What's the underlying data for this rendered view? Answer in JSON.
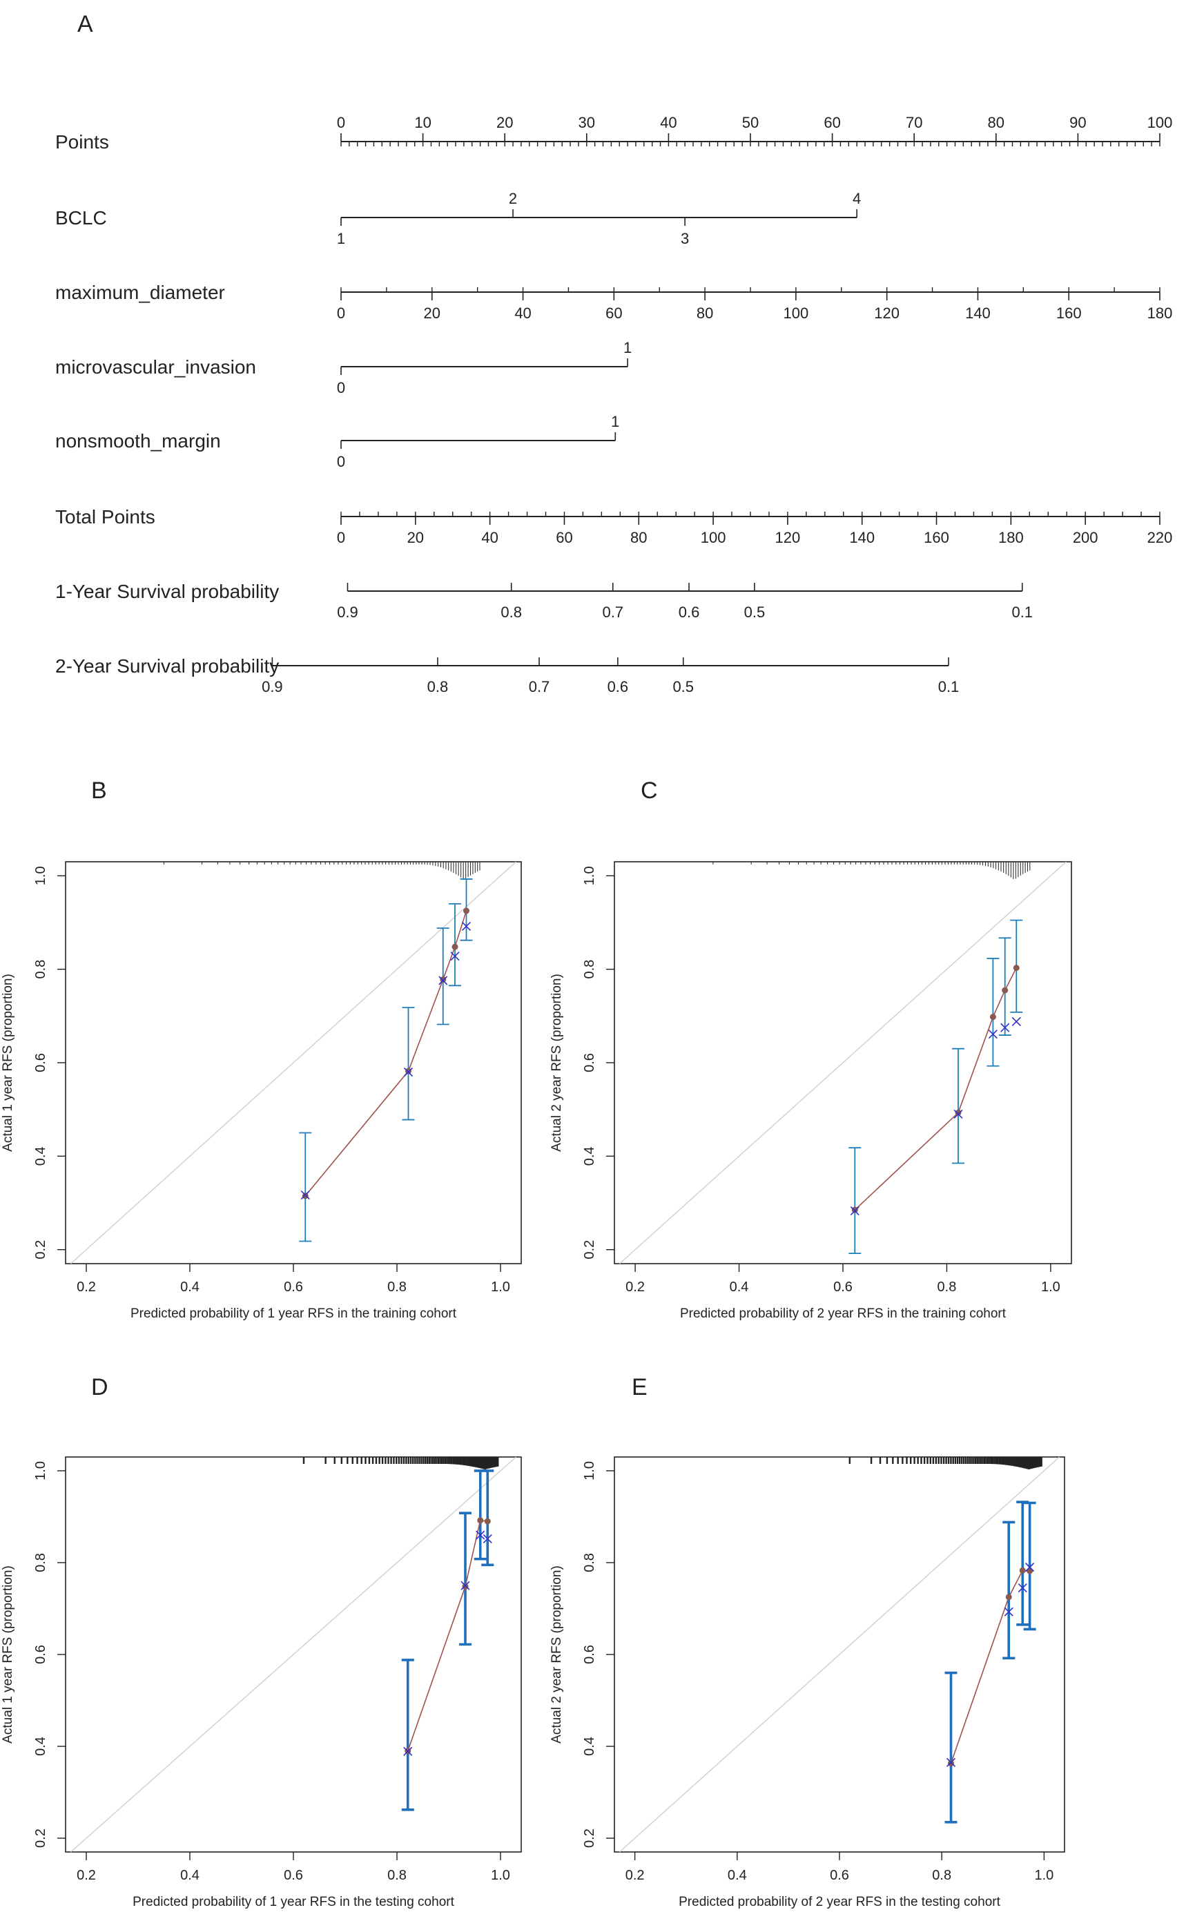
{
  "panel_labels": {
    "A": "A",
    "B": "B",
    "C": "C",
    "D": "D",
    "E": "E"
  },
  "chart_data": [
    {
      "panel": "A",
      "type": "nomogram",
      "rows": [
        {
          "label": "Points",
          "kind": "scale",
          "domain": [
            0,
            100
          ],
          "span": [
            0,
            100
          ],
          "ticks": [
            "0",
            "10",
            "20",
            "30",
            "40",
            "50",
            "60",
            "70",
            "80",
            "90",
            "100"
          ],
          "minor_step": 1,
          "labels_above": true
        },
        {
          "label": "BCLC",
          "kind": "categorical",
          "span": [
            0,
            63
          ],
          "levels": [
            {
              "value": "1",
              "points": 0,
              "side": "below"
            },
            {
              "value": "2",
              "points": 21,
              "side": "above"
            },
            {
              "value": "3",
              "points": 42,
              "side": "below"
            },
            {
              "value": "4",
              "points": 63,
              "side": "above"
            }
          ]
        },
        {
          "label": "maximum_diameter",
          "kind": "scale",
          "domain": [
            0,
            180
          ],
          "span": [
            0,
            100
          ],
          "ticks": [
            "0",
            "20",
            "40",
            "60",
            "80",
            "100",
            "120",
            "140",
            "160",
            "180"
          ],
          "minor_step": 10,
          "labels_above": false
        },
        {
          "label": "microvascular_invasion",
          "kind": "categorical",
          "span": [
            0,
            35
          ],
          "levels": [
            {
              "value": "0",
              "points": 0,
              "side": "below"
            },
            {
              "value": "1",
              "points": 35,
              "side": "above"
            }
          ]
        },
        {
          "label": "nonsmooth_margin",
          "kind": "categorical",
          "span": [
            0,
            33.5
          ],
          "levels": [
            {
              "value": "0",
              "points": 0,
              "side": "below"
            },
            {
              "value": "1",
              "points": 33.5,
              "side": "above"
            }
          ]
        },
        {
          "label": "Total Points",
          "kind": "scale",
          "domain": [
            0,
            220
          ],
          "span": [
            0,
            100
          ],
          "ticks": [
            "0",
            "20",
            "40",
            "60",
            "80",
            "100",
            "120",
            "140",
            "160",
            "180",
            "200",
            "220"
          ],
          "minor_step": 5,
          "labels_above": false
        },
        {
          "label": "1-Year Survival probability",
          "kind": "probability",
          "span": [
            0.8,
            83.2
          ],
          "ticks": [
            {
              "label": "0.9",
              "points": 0.8
            },
            {
              "label": "0.8",
              "points": 20.8
            },
            {
              "label": "0.7",
              "points": 33.2
            },
            {
              "label": "0.6",
              "points": 42.5
            },
            {
              "label": "0.5",
              "points": 50.5
            },
            {
              "label": "0.1",
              "points": 83.2
            }
          ]
        },
        {
          "label": "2-Year Survival probability",
          "kind": "probability",
          "span": [
            -8.4,
            74.2
          ],
          "ticks": [
            {
              "label": "0.9",
              "points": -8.4
            },
            {
              "label": "0.8",
              "points": 11.8
            },
            {
              "label": "0.7",
              "points": 24.2
            },
            {
              "label": "0.6",
              "points": 33.8
            },
            {
              "label": "0.5",
              "points": 41.8
            },
            {
              "label": "0.1",
              "points": 74.2
            }
          ]
        }
      ]
    },
    {
      "panel": "B",
      "type": "scatter",
      "xlabel": "Predicted probability of 1 year RFS in the training cohort",
      "ylabel": "Actual 1 year RFS (proportion)",
      "xlim": [
        0.16,
        1.04
      ],
      "ylim": [
        0.17,
        1.03
      ],
      "xticks": [
        "0.2",
        "0.4",
        "0.6",
        "0.8",
        "1.0"
      ],
      "yticks": [
        "0.2",
        "0.4",
        "0.6",
        "0.8",
        "1.0"
      ],
      "grouped": {
        "x": [
          0.623,
          0.822,
          0.889,
          0.912,
          0.934
        ],
        "observed": [
          0.315,
          0.582,
          0.778,
          0.848,
          0.925
        ],
        "lower": [
          0.218,
          0.478,
          0.682,
          0.765,
          0.862
        ],
        "upper": [
          0.45,
          0.718,
          0.888,
          0.94,
          0.993
        ],
        "corrected": [
          0.317,
          0.58,
          0.776,
          0.828,
          0.892
        ]
      },
      "rug": {
        "start": 0.35,
        "end": 0.96,
        "count": 70,
        "density_peak": 0.93,
        "bar_style": "thin"
      }
    },
    {
      "panel": "C",
      "type": "scatter",
      "xlabel": "Predicted probability of 2 year RFS in the training cohort",
      "ylabel": "Actual 2 year RFS (proportion)",
      "xlim": [
        0.16,
        1.04
      ],
      "ylim": [
        0.17,
        1.03
      ],
      "xticks": [
        "0.2",
        "0.4",
        "0.6",
        "0.8",
        "1.0"
      ],
      "yticks": [
        "0.2",
        "0.4",
        "0.6",
        "0.8",
        "1.0"
      ],
      "grouped": {
        "x": [
          0.623,
          0.822,
          0.889,
          0.912,
          0.934
        ],
        "observed": [
          0.285,
          0.493,
          0.698,
          0.755,
          0.803
        ],
        "lower": [
          0.192,
          0.385,
          0.593,
          0.659,
          0.708
        ],
        "upper": [
          0.418,
          0.63,
          0.823,
          0.867,
          0.905
        ],
        "corrected": [
          0.283,
          0.49,
          0.661,
          0.675,
          0.688
        ]
      },
      "rug": {
        "start": 0.35,
        "end": 0.96,
        "count": 70,
        "density_peak": 0.93,
        "bar_style": "thin"
      }
    },
    {
      "panel": "D",
      "type": "scatter",
      "xlabel": "Predicted probability of 1 year RFS in the testing cohort",
      "ylabel": "Actual 1 year RFS (proportion)",
      "xlim": [
        0.16,
        1.04
      ],
      "ylim": [
        0.17,
        1.03
      ],
      "xticks": [
        "0.2",
        "0.4",
        "0.6",
        "0.8",
        "1.0"
      ],
      "yticks": [
        "0.2",
        "0.4",
        "0.6",
        "0.8",
        "1.0"
      ],
      "grouped": {
        "x": [
          0.821,
          0.932,
          0.961,
          0.975
        ],
        "observed": [
          0.39,
          0.748,
          0.892,
          0.89
        ],
        "lower": [
          0.262,
          0.622,
          0.808,
          0.795
        ],
        "upper": [
          0.588,
          0.908,
          1.0,
          1.0
        ],
        "corrected": [
          0.389,
          0.75,
          0.86,
          0.852
        ]
      },
      "rug": {
        "start": 0.62,
        "end": 0.995,
        "count": 80,
        "density_peak": 0.97,
        "bar_style": "bold"
      }
    },
    {
      "panel": "E",
      "type": "scatter",
      "xlabel": "Predicted probability of 2 year RFS in the testing cohort",
      "ylabel": "Actual 2 year RFS (proportion)",
      "xlim": [
        0.16,
        1.04
      ],
      "ylim": [
        0.17,
        1.03
      ],
      "xticks": [
        "0.2",
        "0.4",
        "0.6",
        "0.8",
        "1.0"
      ],
      "yticks": [
        "0.2",
        "0.4",
        "0.6",
        "0.8",
        "1.0"
      ],
      "grouped": {
        "x": [
          0.818,
          0.931,
          0.958,
          0.972
        ],
        "observed": [
          0.363,
          0.725,
          0.783,
          0.782
        ],
        "lower": [
          0.235,
          0.592,
          0.665,
          0.655
        ],
        "upper": [
          0.56,
          0.888,
          0.932,
          0.93
        ],
        "corrected": [
          0.365,
          0.693,
          0.745,
          0.79
        ]
      },
      "rug": {
        "start": 0.62,
        "end": 0.995,
        "count": 80,
        "density_peak": 0.97,
        "bar_style": "bold"
      }
    }
  ]
}
